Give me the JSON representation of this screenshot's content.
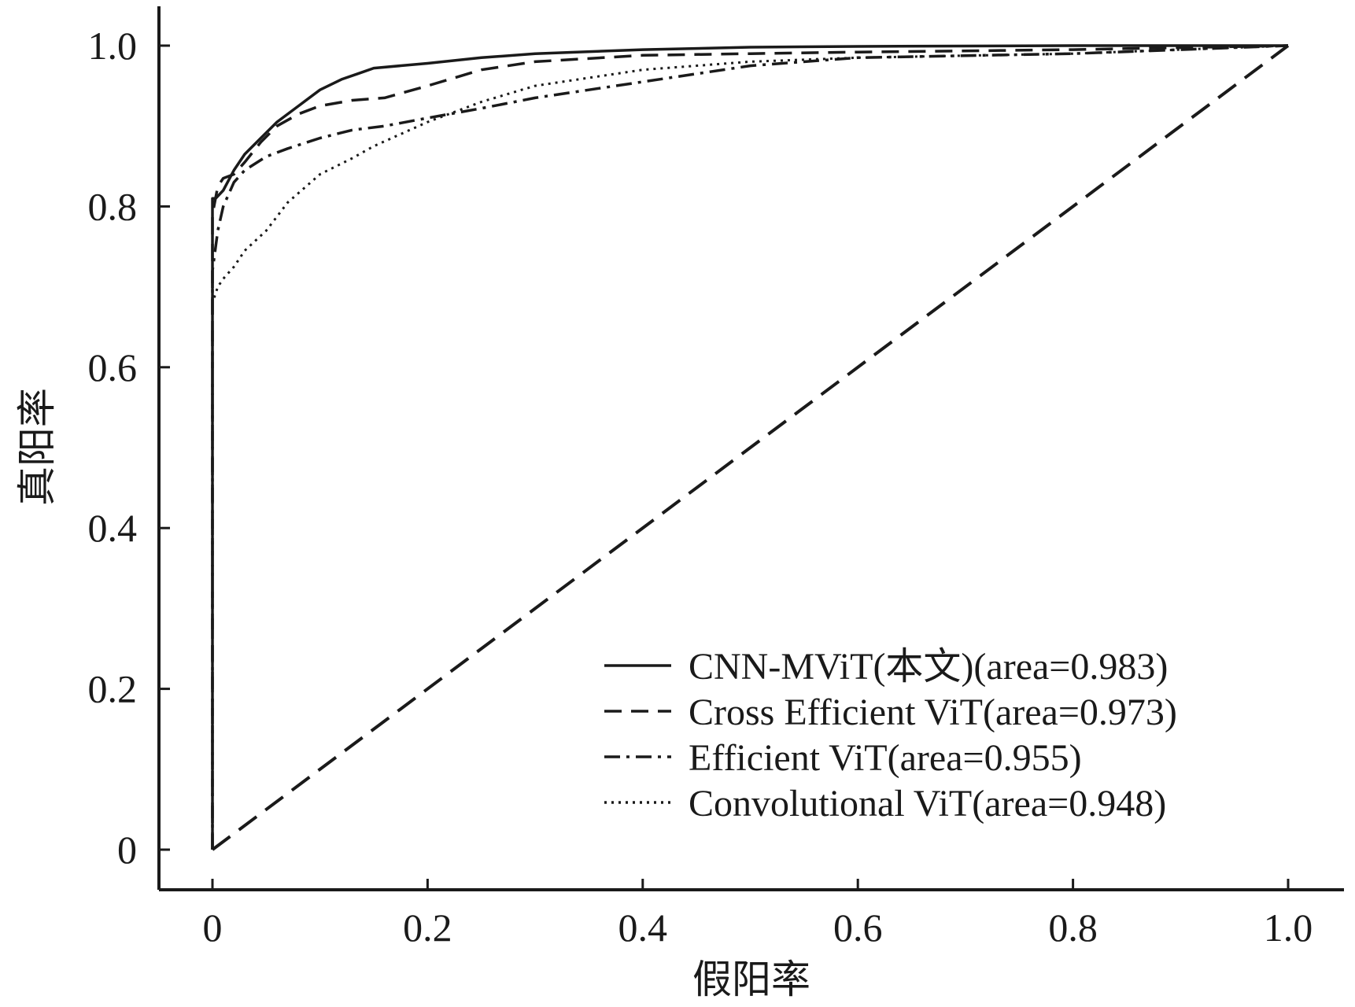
{
  "chart_data": {
    "type": "line",
    "title": "",
    "xlabel": "假阳率",
    "ylabel": "真阳率",
    "xlim": [
      0,
      1.0
    ],
    "ylim": [
      0,
      1.0
    ],
    "x_ticks": [
      "0",
      "0.2",
      "0.4",
      "0.6",
      "0.8",
      "1.0"
    ],
    "y_ticks": [
      "0",
      "0.2",
      "0.4",
      "0.6",
      "0.8",
      "1.0"
    ],
    "grid": false,
    "legend_position": "bottom-right",
    "diagonal": {
      "style": "dashed",
      "x": [
        0,
        1
      ],
      "y": [
        0,
        1
      ]
    },
    "series": [
      {
        "name": "CNN-MViT(本文)(area=0.983)",
        "style": "solid",
        "x": [
          0,
          0,
          0.003,
          0.01,
          0.02,
          0.03,
          0.045,
          0.06,
          0.08,
          0.1,
          0.12,
          0.135,
          0.15,
          0.2,
          0.25,
          0.3,
          0.4,
          0.5,
          0.6,
          0.8,
          1.0
        ],
        "y": [
          0,
          0.81,
          0.81,
          0.82,
          0.845,
          0.865,
          0.885,
          0.905,
          0.925,
          0.945,
          0.958,
          0.965,
          0.972,
          0.978,
          0.985,
          0.99,
          0.995,
          0.998,
          0.999,
          1.0,
          1.0
        ]
      },
      {
        "name": "Cross Efficient ViT(area=0.973)",
        "style": "dashed",
        "x": [
          0,
          0,
          0.005,
          0.01,
          0.02,
          0.03,
          0.045,
          0.06,
          0.08,
          0.1,
          0.13,
          0.16,
          0.2,
          0.25,
          0.3,
          0.4,
          0.5,
          0.6,
          0.8,
          1.0
        ],
        "y": [
          0,
          0.79,
          0.825,
          0.835,
          0.84,
          0.855,
          0.88,
          0.9,
          0.915,
          0.925,
          0.932,
          0.935,
          0.95,
          0.97,
          0.98,
          0.988,
          0.99,
          0.992,
          0.995,
          1.0
        ]
      },
      {
        "name": "Efficient ViT(area=0.955)",
        "style": "dashdot",
        "x": [
          0,
          0,
          0.005,
          0.01,
          0.02,
          0.03,
          0.05,
          0.07,
          0.1,
          0.13,
          0.16,
          0.2,
          0.25,
          0.3,
          0.35,
          0.4,
          0.45,
          0.5,
          0.6,
          0.8,
          1.0
        ],
        "y": [
          0,
          0.72,
          0.77,
          0.8,
          0.83,
          0.845,
          0.862,
          0.872,
          0.885,
          0.895,
          0.9,
          0.91,
          0.922,
          0.935,
          0.945,
          0.955,
          0.965,
          0.975,
          0.985,
          0.99,
          1.0
        ]
      },
      {
        "name": "Convolutional ViT(area=0.948)",
        "style": "dotted",
        "x": [
          0,
          0,
          0.005,
          0.01,
          0.02,
          0.03,
          0.05,
          0.07,
          0.1,
          0.13,
          0.15,
          0.2,
          0.25,
          0.3,
          0.35,
          0.4,
          0.5,
          0.6,
          0.8,
          1.0
        ],
        "y": [
          0,
          0.68,
          0.7,
          0.71,
          0.725,
          0.745,
          0.77,
          0.805,
          0.84,
          0.86,
          0.875,
          0.905,
          0.93,
          0.95,
          0.96,
          0.97,
          0.98,
          0.985,
          0.99,
          1.0
        ]
      }
    ]
  }
}
